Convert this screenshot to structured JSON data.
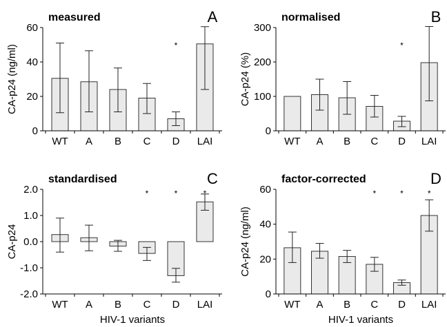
{
  "chart_data": [
    {
      "type": "bar",
      "title": "measured",
      "panel_letter": "A",
      "ylabel": "CA-p24 (ng/ml)",
      "xlabel": "",
      "ylim": [
        0,
        60
      ],
      "yticks": [
        0,
        20,
        40,
        60
      ],
      "ytick_labels": [
        "0",
        "20",
        "40",
        "60"
      ],
      "categories": [
        "WT",
        "A",
        "B",
        "C",
        "D",
        "LAI"
      ],
      "values": [
        30.5,
        28.5,
        24,
        19,
        7,
        50.5
      ],
      "error_low": [
        10.5,
        11,
        11,
        10,
        3,
        24
      ],
      "error_high": [
        51,
        46.5,
        36.5,
        27.5,
        11,
        60.5
      ],
      "significance": [
        "",
        "",
        "",
        "",
        "*",
        ""
      ],
      "bar_color": "#eaeaea",
      "grid": false
    },
    {
      "type": "bar",
      "title": "normalised",
      "panel_letter": "B",
      "ylabel": "CA-p24 (%)",
      "xlabel": "",
      "ylim": [
        0,
        300
      ],
      "yticks": [
        0,
        100,
        200,
        300
      ],
      "ytick_labels": [
        "0",
        "100",
        "200",
        "300"
      ],
      "categories": [
        "WT",
        "A",
        "B",
        "C",
        "D",
        "LAI"
      ],
      "values": [
        100,
        105,
        96,
        71,
        28,
        198
      ],
      "error_low": [
        100,
        60,
        48,
        40,
        12,
        87
      ],
      "error_high": [
        100,
        150,
        143,
        103,
        42,
        303
      ],
      "significance": [
        "",
        "",
        "",
        "",
        "*",
        ""
      ],
      "bar_color": "#eaeaea",
      "grid": false
    },
    {
      "type": "bar",
      "title": "standardised",
      "panel_letter": "C",
      "ylabel": "CA-p24",
      "xlabel": "HIV-1 variants",
      "ylim": [
        -2,
        2
      ],
      "yticks": [
        -2,
        -1,
        0,
        1,
        2
      ],
      "ytick_labels": [
        "-2.0",
        "-1.0",
        "0.0",
        "1.0",
        "2.0"
      ],
      "categories": [
        "WT",
        "A",
        "B",
        "C",
        "D",
        "LAI"
      ],
      "values": [
        0.27,
        0.15,
        -0.17,
        -0.45,
        -1.3,
        1.52
      ],
      "error_low": [
        -0.4,
        -0.35,
        -0.37,
        -0.72,
        -1.55,
        1.2
      ],
      "error_high": [
        0.9,
        0.63,
        0.05,
        -0.22,
        -1.02,
        1.82
      ],
      "significance": [
        "",
        "",
        "",
        "*",
        "*",
        "*"
      ],
      "bar_color": "#eaeaea",
      "grid": false
    },
    {
      "type": "bar",
      "title": "factor-corrected",
      "panel_letter": "D",
      "ylabel": "CA-p24 (ng/ml)",
      "xlabel": "HIV-1 variants",
      "ylim": [
        0,
        60
      ],
      "yticks": [
        0,
        20,
        40,
        60
      ],
      "ytick_labels": [
        "0",
        "20",
        "40",
        "60"
      ],
      "categories": [
        "WT",
        "A",
        "B",
        "C",
        "D",
        "LAI"
      ],
      "values": [
        26.5,
        24.5,
        21.5,
        17,
        6.5,
        45
      ],
      "error_low": [
        18,
        20.5,
        18,
        13,
        5,
        36
      ],
      "error_high": [
        35.5,
        29,
        25,
        21,
        8,
        54
      ],
      "significance": [
        "",
        "",
        "",
        "*",
        "*",
        "*"
      ],
      "bar_color": "#eaeaea",
      "grid": false
    }
  ]
}
